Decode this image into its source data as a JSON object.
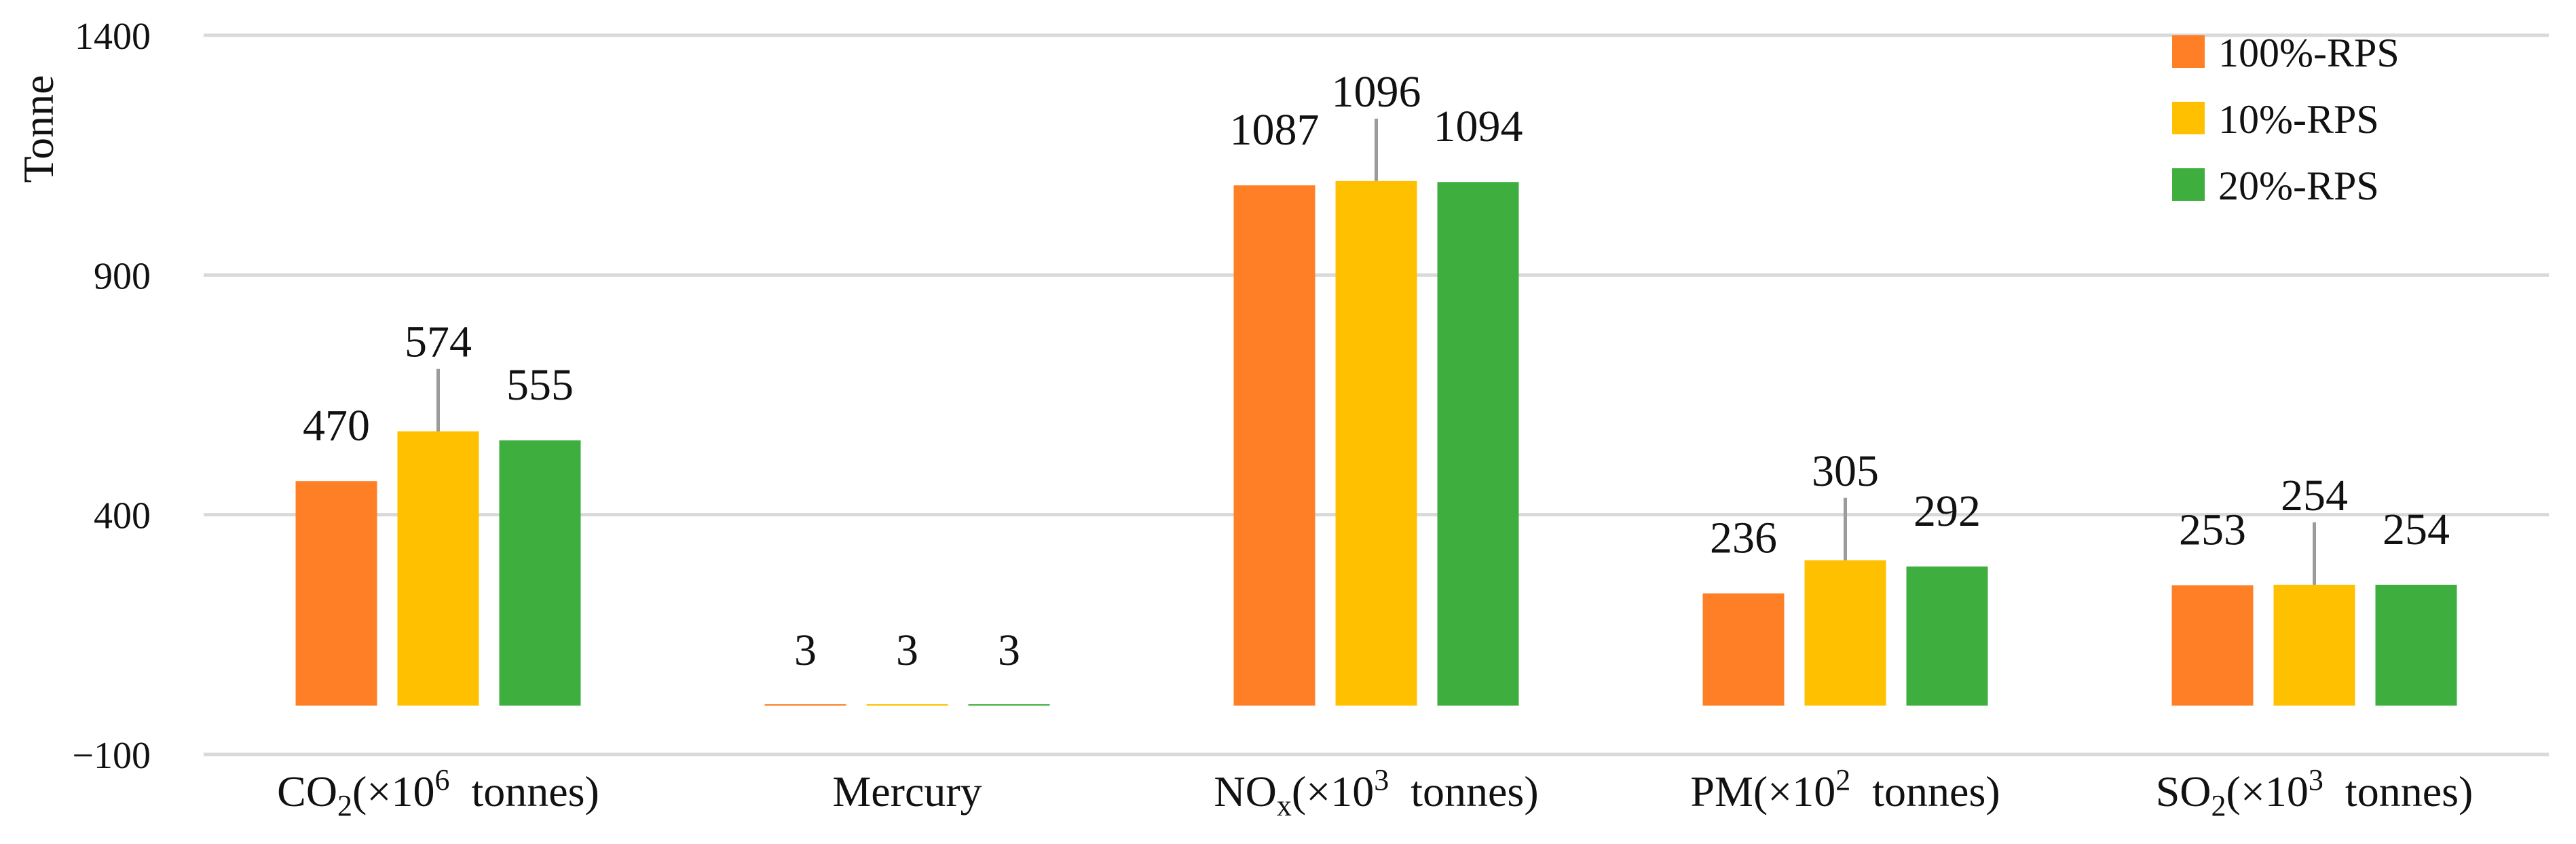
{
  "chart_data": {
    "type": "bar",
    "title": "",
    "xlabel": "",
    "ylabel": "Tonne",
    "ylim": [
      -100,
      1400
    ],
    "yticks": [
      {
        "value": 1400,
        "label": "1400"
      },
      {
        "value": 900,
        "label": "900"
      },
      {
        "value": 400,
        "label": "400"
      },
      {
        "value": -100,
        "label": "−100"
      }
    ],
    "grid": true,
    "legend_position": "top-right",
    "categories": [
      {
        "base": "CO",
        "sub": "2",
        "mid": "(×10",
        "sup": "6",
        "tail": "  tonnes)"
      },
      {
        "base": "Mercury",
        "sub": "",
        "mid": "",
        "sup": "",
        "tail": ""
      },
      {
        "base": "NO",
        "sub": "x",
        "mid": "(×10",
        "sup": "3",
        "tail": "  tonnes)"
      },
      {
        "base": "PM",
        "sub": "",
        "mid": "(×10",
        "sup": "2",
        "tail": "  tonnes)"
      },
      {
        "base": "SO",
        "sub": "2",
        "mid": "(×10",
        "sup": "3",
        "tail": "  tonnes)"
      }
    ],
    "series": [
      {
        "name": "100%-RPS",
        "color": "#FF7F27",
        "values": [
          470,
          3,
          1087,
          236,
          253
        ]
      },
      {
        "name": "10%-RPS",
        "color": "#FFC000",
        "values": [
          574,
          3,
          1096,
          305,
          254
        ]
      },
      {
        "name": "20%-RPS",
        "color": "#3EAF3E",
        "values": [
          555,
          3,
          1094,
          292,
          254
        ]
      }
    ]
  }
}
